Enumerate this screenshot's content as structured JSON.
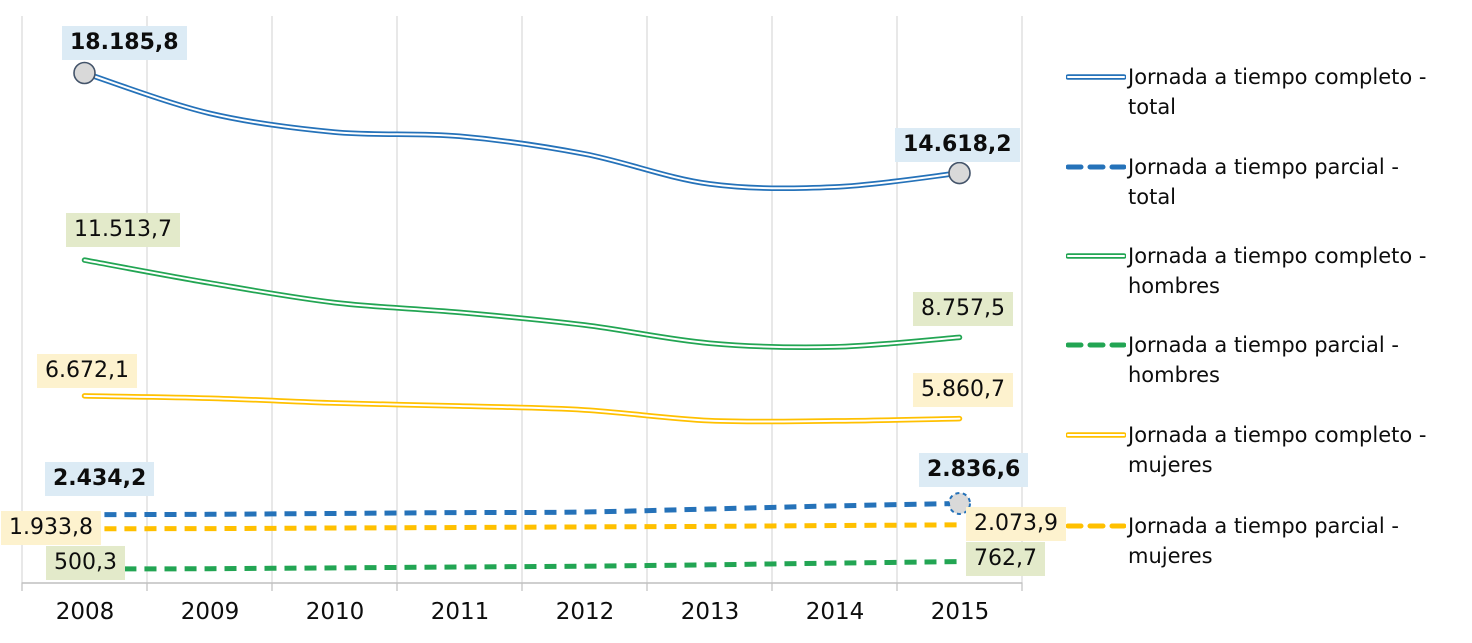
{
  "chart_data": {
    "type": "line",
    "categories": [
      "2008",
      "2009",
      "2010",
      "2011",
      "2012",
      "2013",
      "2014",
      "2015"
    ],
    "x_axis": {
      "position": "bottom",
      "gridlines": "vertical",
      "tick_between_categories": true
    },
    "ylim": [
      0,
      20000
    ],
    "grid_color": "#D9D9D9",
    "axis_color": "#BFBFBF",
    "marker_fill": "#D9D9D9",
    "marker_edge_dark": "#44546A",
    "series": [
      {
        "name": "Jornada a tiempo completo - total",
        "color": "#2572B9",
        "pattern": "double",
        "values": [
          18185.8,
          16750,
          16080,
          15930,
          15300,
          14230,
          14120,
          14618.2
        ],
        "markers": "both",
        "start_label": "18.185,8",
        "end_label": "14.618,2",
        "label_bg": "#DCEBF5",
        "labels_bold": true
      },
      {
        "name": "Jornada a tiempo parcial - total",
        "color": "#2572B9",
        "pattern": "dashed",
        "values": [
          2434.2,
          2450,
          2480,
          2510,
          2530,
          2640,
          2750,
          2836.6
        ],
        "markers": "end-dashed",
        "start_label": "2.434,2",
        "end_label": "2.836,6",
        "label_bg": "#DCEBF5",
        "labels_bold": true
      },
      {
        "name": "Jornada a tiempo completo - hombres",
        "color": "#22A553",
        "pattern": "double",
        "values": [
          11513.7,
          10700,
          10000,
          9650,
          9200,
          8550,
          8420,
          8757.5
        ],
        "markers": "none",
        "start_label": "11.513,7",
        "end_label": "8.757,5",
        "label_bg": "#E3EACA",
        "labels_bold": false
      },
      {
        "name": "Jornada a tiempo parcial - hombres",
        "color": "#22A553",
        "pattern": "dashed",
        "values": [
          500.3,
          510,
          540,
          570,
          600,
          650,
          710,
          762.7
        ],
        "markers": "none",
        "start_label": "500,3",
        "end_label": "762,7",
        "label_bg": "#E3EACA",
        "labels_bold": false
      },
      {
        "name": "Jornada a tiempo completo - mujeres",
        "color": "#FFC000",
        "pattern": "double",
        "values": [
          6672.1,
          6590,
          6420,
          6310,
          6170,
          5790,
          5780,
          5860.7
        ],
        "markers": "none",
        "start_label": "6.672,1",
        "end_label": "5.860,7",
        "label_bg": "#FDF2CE",
        "labels_bold": false
      },
      {
        "name": "Jornada a tiempo parcial - mujeres",
        "color": "#FFC000",
        "pattern": "dashed",
        "values": [
          1933.8,
          1940,
          1960,
          1980,
          2000,
          2020,
          2050,
          2073.9
        ],
        "markers": "none",
        "start_label": "1.933,8",
        "end_label": "2.073,9",
        "label_bg": "#FDF2CE",
        "labels_bold": false
      }
    ]
  },
  "legend": {
    "entries": [
      {
        "line1": "Jornada a tiempo completo -",
        "line2": "total",
        "color": "#2572B9",
        "dash": false
      },
      {
        "line1": "Jornada a tiempo parcial -",
        "line2": "total",
        "color": "#2572B9",
        "dash": true
      },
      {
        "line1": "Jornada a tiempo completo -",
        "line2": "hombres",
        "color": "#22A553",
        "dash": false
      },
      {
        "line1": "Jornada a tiempo parcial -",
        "line2": "hombres",
        "color": "#22A553",
        "dash": true
      },
      {
        "line1": "Jornada a tiempo completo -",
        "line2": "mujeres",
        "color": "#FFC000",
        "dash": false
      },
      {
        "line1": "Jornada a tiempo parcial -",
        "line2": "mujeres",
        "color": "#FFC000",
        "dash": true
      }
    ]
  }
}
